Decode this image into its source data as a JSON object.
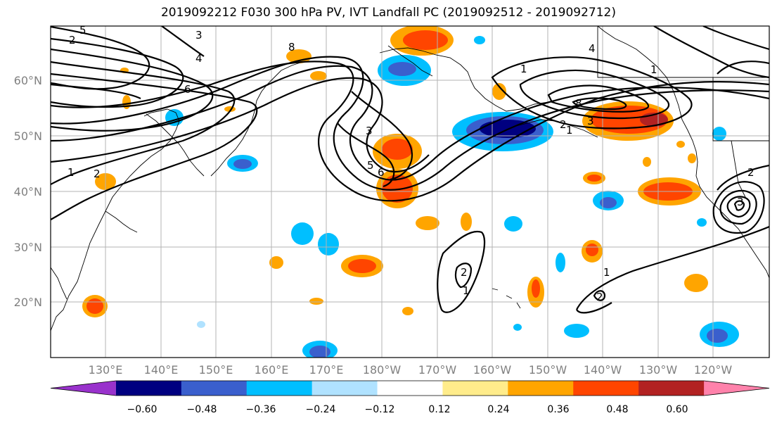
{
  "title": "2019092212 F030 300 hPa PV, IVT Landfall PC (2019092512 - 2019092712)",
  "map": {
    "lat_labels": [
      "60°N",
      "50°N",
      "40°N",
      "30°N",
      "20°N"
    ],
    "lon_labels": [
      "130°E",
      "140°E",
      "150°E",
      "160°E",
      "170°E",
      "180°W",
      "170°W",
      "160°W",
      "150°W",
      "140°W",
      "130°W",
      "120°W"
    ],
    "grid": true
  },
  "colorbar": {
    "colors": [
      "#9932cc",
      "#000080",
      "#3a5fcd",
      "#00bfff",
      "#b0e2ff",
      "#ffffff",
      "#ffec8b",
      "#ffa500",
      "#ff4500",
      "#b22222",
      "#ff82ab"
    ],
    "tick_labels": [
      "−0.60",
      "−0.48",
      "−0.36",
      "−0.24",
      "−0.12",
      "0.12",
      "0.24",
      "0.36",
      "0.48",
      "0.60"
    ],
    "extend": "both"
  },
  "contour_labels": [
    "5",
    "2",
    "3",
    "4",
    "6",
    "1",
    "2",
    "3",
    "5",
    "6",
    "8",
    "4",
    "1",
    "1",
    "2",
    "3",
    "8",
    "1",
    "2",
    "2",
    "1",
    "2",
    "3",
    "1"
  ]
}
